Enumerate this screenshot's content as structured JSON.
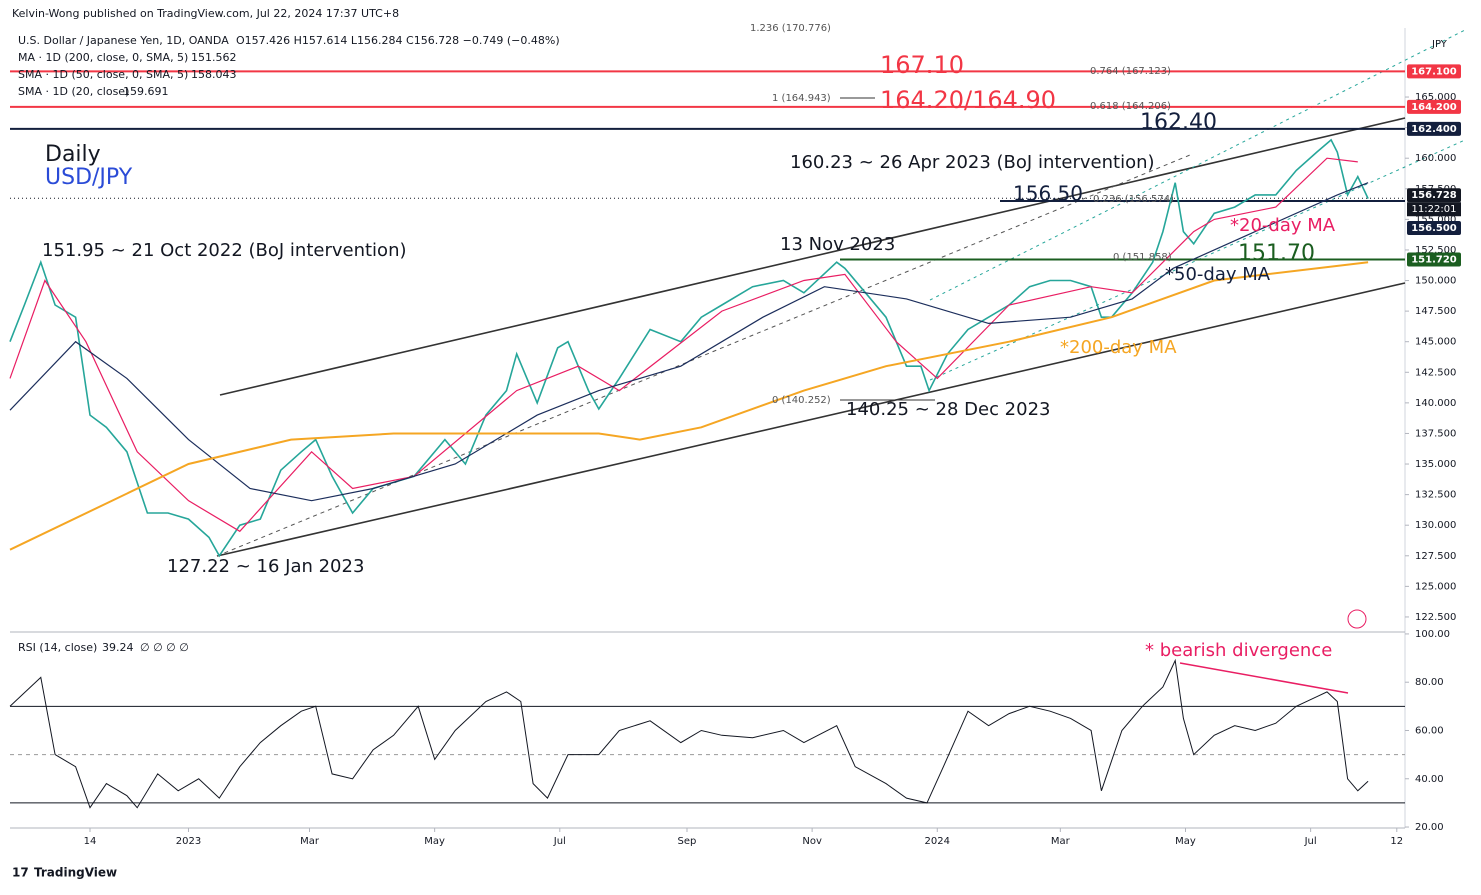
{
  "header": {
    "publisher": "Kelvin-Wong published on TradingView.com, Jul 22, 2024 17:37 UTC+8",
    "currency": "JPY",
    "footer": "TradingView"
  },
  "chart_data": [
    {
      "type": "line",
      "title": "U.S. Dollar / Japanese Yen, 1D, OANDA",
      "ohlc": "O157.426 H157.614 L156.284 C156.728 −0.749 (−0.48%)",
      "xlim": [
        -87,
        593
      ],
      "ylim": [
        121.27,
        170.48
      ],
      "yticks": [
        {
          "value": 122.5,
          "label": "122.500"
        },
        {
          "value": 125,
          "label": "125.000"
        },
        {
          "value": 127.5,
          "label": "127.500"
        },
        {
          "value": 130,
          "label": "130.000"
        },
        {
          "value": 132.5,
          "label": "132.500"
        },
        {
          "value": 135,
          "label": "135.000"
        },
        {
          "value": 137.5,
          "label": "137.500"
        },
        {
          "value": 140,
          "label": "140.000"
        },
        {
          "value": 142.5,
          "label": "142.500"
        },
        {
          "value": 145,
          "label": "145.000"
        },
        {
          "value": 147.5,
          "label": "147.500"
        },
        {
          "value": 150,
          "label": "150.000"
        },
        {
          "value": 152.5,
          "label": "152.500"
        },
        {
          "value": 155,
          "label": "155.000"
        },
        {
          "value": 157.5,
          "label": "157.500"
        },
        {
          "value": 160,
          "label": "160.000"
        },
        {
          "value": 162.5,
          "label": "162.500"
        },
        {
          "value": 165,
          "label": "165.000"
        }
      ],
      "series": [
        {
          "name": "USD/JPY",
          "color": "#26a69a",
          "width": 1.6,
          "x": [
            -87,
            -80,
            -72,
            -65,
            -55,
            -48,
            -40,
            -30,
            -20,
            -10,
            0,
            10,
            15,
            25,
            35,
            45,
            55,
            62,
            70,
            80,
            90,
            100,
            110,
            125,
            135,
            145,
            155,
            160,
            170,
            180,
            185,
            195,
            200,
            210,
            225,
            240,
            250,
            260,
            275,
            290,
            300,
            316,
            320,
            330,
            340,
            350,
            357,
            361,
            370,
            380,
            390,
            400,
            410,
            420,
            430,
            440,
            445,
            450,
            460,
            470,
            475,
            481,
            485,
            490,
            500,
            510,
            520,
            530,
            540,
            550,
            557,
            560,
            565,
            570,
            575
          ],
          "values": [
            145,
            148,
            151.5,
            148,
            147,
            139,
            138,
            136,
            131,
            131,
            130.5,
            129,
            127.5,
            130,
            130.5,
            134.5,
            136,
            137,
            134,
            131,
            133,
            133.5,
            134,
            137,
            135,
            139,
            141,
            144,
            140,
            144.5,
            145,
            141,
            139.5,
            142,
            146,
            145,
            147,
            148,
            149.5,
            150,
            149,
            151.5,
            151,
            149,
            147,
            143,
            143,
            141,
            144,
            146,
            147,
            148,
            149.5,
            150,
            150,
            149.5,
            147,
            147,
            149,
            151.5,
            154,
            158,
            154,
            153,
            155.5,
            156,
            157,
            157,
            159,
            160.5,
            161.5,
            160.5,
            157,
            158.5,
            156.7
          ]
        },
        {
          "name": "SMA · 1D (20, close)",
          "legend_value": 159.691,
          "color": "#e91e63",
          "width": 1.2,
          "x": [
            -87,
            -70,
            -50,
            -25,
            0,
            25,
            60,
            80,
            110,
            160,
            190,
            210,
            260,
            300,
            320,
            345,
            365,
            400,
            440,
            460,
            490,
            500,
            530,
            555,
            570
          ],
          "values": [
            142,
            150,
            145,
            136,
            132,
            129.5,
            136,
            133,
            134,
            141,
            143,
            141,
            147.5,
            150,
            150.5,
            145,
            142,
            148,
            149.5,
            149,
            154,
            155,
            156,
            160,
            159.7
          ]
        },
        {
          "name": "SMA · 1D (50, close, 0, SMA, 5)",
          "legend_value": 158.043,
          "color": "#1c2e5c",
          "width": 1.2,
          "x": [
            -87,
            -55,
            -30,
            0,
            30,
            60,
            90,
            130,
            170,
            200,
            240,
            280,
            310,
            350,
            390,
            430,
            460,
            480,
            520,
            560,
            575
          ],
          "values": [
            139.4,
            145,
            142,
            137,
            133,
            132,
            133,
            135,
            139,
            141,
            143,
            147,
            149.5,
            148.5,
            146.5,
            147,
            148.5,
            151,
            154,
            157,
            158
          ]
        },
        {
          "name": "MA · 1D (200, close, 0, SMA, 5)",
          "legend_value": 151.562,
          "color": "#f5a623",
          "width": 2,
          "x": [
            -87,
            0,
            50,
            100,
            200,
            220,
            250,
            300,
            340,
            400,
            450,
            500,
            575
          ],
          "values": [
            128,
            135,
            137,
            137.5,
            137.5,
            137,
            138,
            141,
            143,
            145,
            147,
            150,
            151.5
          ]
        }
      ],
      "levels": [
        {
          "value": 167.1,
          "label": "167.100",
          "color": "#f23645"
        },
        {
          "value": 164.2,
          "label": "164.200",
          "color": "#f23645"
        },
        {
          "value": 162.4,
          "label": "162.400",
          "color": "#131f3d"
        },
        {
          "value": 156.728,
          "label": "156.728",
          "sub": "11:22:01",
          "color": "#131722"
        },
        {
          "value": 156.5,
          "label": "156.500",
          "color": "#131f3d"
        },
        {
          "value": 151.72,
          "label": "151.720",
          "color": "#1b5e20"
        }
      ],
      "annotations": [
        {
          "text": "Daily",
          "color": "#131722"
        },
        {
          "text": "USD/JPY",
          "color": "#2a4bd7"
        },
        {
          "text": "151.95 ~ 21 Oct 2022 (BoJ intervention)",
          "color": "#131722"
        },
        {
          "text": "13 Nov 2023",
          "color": "#131722"
        },
        {
          "text": "160.23 ~ 26 Apr 2023 (BoJ intervention)",
          "color": "#131722"
        },
        {
          "text": "127.22 ~ 16 Jan 2023",
          "color": "#131722"
        },
        {
          "text": "140.25 ~ 28 Dec 2023",
          "color": "#131722"
        },
        {
          "text": "167.10",
          "color": "#f23645"
        },
        {
          "text": "164.20/164.90",
          "color": "#f23645"
        },
        {
          "text": "162.40",
          "color": "#131f3d"
        },
        {
          "text": "156.50",
          "color": "#131f3d"
        },
        {
          "text": "151.70",
          "color": "#1b5e20"
        },
        {
          "text": "*20-day MA",
          "color": "#e91e63"
        },
        {
          "text": "*50-day MA",
          "color": "#131f3d"
        },
        {
          "text": "*200-day MA",
          "color": "#f5a623"
        },
        {
          "text": "* bearish divergence",
          "color": "#e91e63"
        }
      ],
      "fib_labels": [
        "1.236 (170.776)",
        "0.764 (167.123)",
        "1 (164.943)",
        "0.618 (164.206)",
        "0.236 (156.574)",
        "0 (151.858)",
        "0 (140.252)"
      ]
    },
    {
      "type": "line",
      "title": "RSI (14, close)",
      "legend_value": 39.24,
      "legend_extra": "∅ ∅ ∅ ∅",
      "xlim": [
        -87,
        593
      ],
      "ylim": [
        19.6,
        100.8
      ],
      "xticks": [
        {
          "value": -48,
          "label": "14"
        },
        {
          "value": 0,
          "label": "2023"
        },
        {
          "value": 59,
          "label": "Mar"
        },
        {
          "value": 120,
          "label": "May"
        },
        {
          "value": 181,
          "label": "Jul"
        },
        {
          "value": 243,
          "label": "Sep"
        },
        {
          "value": 304,
          "label": "Nov"
        },
        {
          "value": 365,
          "label": "2024"
        },
        {
          "value": 425,
          "label": "Mar"
        },
        {
          "value": 486,
          "label": "May"
        },
        {
          "value": 547,
          "label": "Jul"
        },
        {
          "value": 589,
          "label": "12"
        }
      ],
      "yticks": [
        {
          "value": 20,
          "label": "20.00"
        },
        {
          "value": 40,
          "label": "40.00"
        },
        {
          "value": 60,
          "label": "60.00"
        },
        {
          "value": 80,
          "label": "80.00"
        },
        {
          "value": 100,
          "label": "100.00"
        }
      ],
      "bands": [
        70,
        50,
        30
      ],
      "series": [
        {
          "name": "RSI",
          "color": "#131722",
          "width": 1,
          "x": [
            -87,
            -72,
            -65,
            -55,
            -48,
            -40,
            -30,
            -25,
            -15,
            -5,
            5,
            15,
            25,
            35,
            45,
            55,
            62,
            70,
            80,
            90,
            100,
            112,
            120,
            130,
            145,
            155,
            162,
            168,
            175,
            185,
            200,
            210,
            225,
            240,
            250,
            260,
            275,
            290,
            300,
            316,
            325,
            340,
            350,
            360,
            368,
            380,
            390,
            400,
            410,
            420,
            430,
            440,
            445,
            455,
            465,
            475,
            481,
            485,
            490,
            500,
            510,
            520,
            530,
            540,
            550,
            555,
            560,
            565,
            570,
            575
          ],
          "values": [
            70,
            82,
            50,
            45,
            28,
            38,
            33,
            28,
            42,
            35,
            40,
            32,
            45,
            55,
            62,
            68,
            70,
            42,
            40,
            52,
            58,
            70,
            48,
            60,
            72,
            76,
            72,
            38,
            32,
            50,
            50,
            60,
            64,
            55,
            60,
            58,
            57,
            60,
            55,
            62,
            45,
            38,
            32,
            30,
            45,
            68,
            62,
            67,
            70,
            68,
            65,
            60,
            35,
            60,
            70,
            78,
            89,
            65,
            50,
            58,
            62,
            60,
            63,
            70,
            74,
            76,
            72,
            40,
            35,
            39
          ]
        }
      ]
    }
  ]
}
